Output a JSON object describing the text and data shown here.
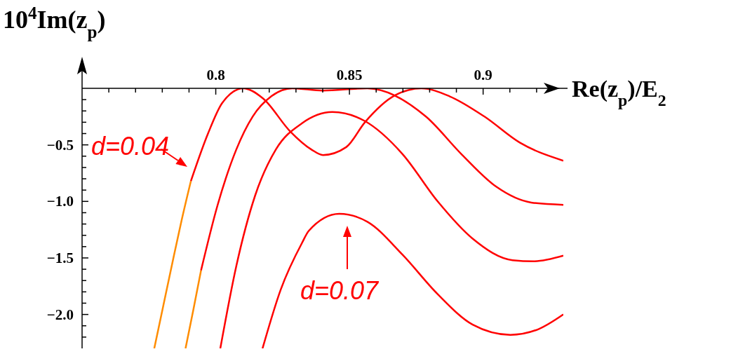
{
  "chart_data": {
    "type": "line",
    "xlabel": "Re(z$_{p}$)/E$_{2}$",
    "ylabel": "10$^{4}$Im(z$_{p}$)",
    "xlim": [
      0.75,
      0.93
    ],
    "ylim": [
      -2.3,
      0
    ],
    "xticks": [
      {
        "value": 0.76,
        "label": null
      },
      {
        "value": 0.77,
        "label": null
      },
      {
        "value": 0.78,
        "label": null
      },
      {
        "value": 0.79,
        "label": null
      },
      0.8,
      {
        "value": 0.81,
        "label": null
      },
      {
        "value": 0.82,
        "label": null
      },
      {
        "value": 0.83,
        "label": null
      },
      {
        "value": 0.84,
        "label": null
      },
      0.85,
      {
        "value": 0.86,
        "label": null
      },
      {
        "value": 0.87,
        "label": null
      },
      {
        "value": 0.88,
        "label": null
      },
      {
        "value": 0.89,
        "label": null
      },
      0.9,
      {
        "value": 0.91,
        "label": null
      },
      {
        "value": 0.92,
        "label": null
      }
    ],
    "yticks": [
      {
        "value": -0.1,
        "label": null
      },
      {
        "value": -0.2,
        "label": null
      },
      {
        "value": -0.3,
        "label": null
      },
      {
        "value": -0.4,
        "label": null
      },
      {
        "value": -0.5,
        "label": "−0.5"
      },
      {
        "value": -0.6,
        "label": null
      },
      {
        "value": -0.7,
        "label": null
      },
      {
        "value": -0.8,
        "label": null
      },
      {
        "value": -0.9,
        "label": null
      },
      {
        "value": -1.0,
        "label": "−1.0"
      },
      {
        "value": -1.1,
        "label": null
      },
      {
        "value": -1.2,
        "label": null
      },
      {
        "value": -1.3,
        "label": null
      },
      {
        "value": -1.4,
        "label": null
      },
      {
        "value": -1.5,
        "label": "−1.5"
      },
      {
        "value": -1.6,
        "label": null
      },
      {
        "value": -1.7,
        "label": null
      },
      {
        "value": -1.8,
        "label": null
      },
      {
        "value": -1.9,
        "label": null
      },
      {
        "value": -2.0,
        "label": "−2.0"
      },
      {
        "value": -2.1,
        "label": null
      },
      {
        "value": -2.2,
        "label": null
      }
    ],
    "marker": "none",
    "line_style": "solid",
    "series": [
      {
        "color": "#ff8c00",
        "x": [
          0.777,
          0.7804,
          0.7838,
          0.7872,
          0.7907
        ],
        "values": [
          -2.3,
          -1.92,
          -1.54,
          -1.17,
          -0.82
        ]
      },
      {
        "color": "#ff0000",
        "x": [
          0.7907,
          0.7971,
          0.8024,
          0.8103,
          0.8177,
          0.8278,
          0.8357,
          0.8401,
          0.8488,
          0.8558,
          0.8672,
          0.8769,
          0.8874,
          0.9005,
          0.9137,
          0.93
        ],
        "values": [
          -0.82,
          -0.4,
          -0.13,
          0,
          -0.09,
          -0.38,
          -0.54,
          -0.59,
          -0.52,
          -0.3,
          -0.06,
          0,
          -0.07,
          -0.25,
          -0.48,
          -0.64
        ]
      },
      {
        "color": "#ff8c00",
        "x": [
          0.7887,
          0.7916,
          0.7945
        ],
        "values": [
          -2.3,
          -1.96,
          -1.61
        ]
      },
      {
        "color": "#ff0000",
        "x": [
          0.7945,
          0.8006,
          0.8077,
          0.8138,
          0.8208,
          0.8287,
          0.84,
          0.8567,
          0.8786,
          0.8918,
          0.9049,
          0.918,
          0.93
        ],
        "values": [
          -1.61,
          -1.04,
          -0.54,
          -0.25,
          -0.07,
          0,
          -0.02,
          0,
          -0.25,
          -0.58,
          -0.87,
          -1.01,
          -1.03
        ]
      },
      {
        "color": "#ff0000",
        "x": [
          0.8017,
          0.8077,
          0.8147,
          0.8225,
          0.8322,
          0.8436,
          0.8558,
          0.8698,
          0.883,
          0.8961,
          0.911,
          0.9189,
          0.93
        ],
        "values": [
          -2.3,
          -1.57,
          -0.95,
          -0.54,
          -0.31,
          -0.21,
          -0.29,
          -0.58,
          -1.0,
          -1.33,
          -1.52,
          -1.53,
          -1.48
        ]
      },
      {
        "color": "#ff0000",
        "x": [
          0.8175,
          0.8243,
          0.8322,
          0.8348,
          0.8462,
          0.8567,
          0.8698,
          0.883,
          0.8961,
          0.9102,
          0.9207,
          0.93
        ],
        "values": [
          -2.3,
          -1.78,
          -1.37,
          -1.26,
          -1.11,
          -1.18,
          -1.47,
          -1.82,
          -2.09,
          -2.18,
          -2.13,
          -2.0
        ]
      }
    ],
    "annotations": [
      "d=0.04",
      "d=0.07"
    ]
  }
}
